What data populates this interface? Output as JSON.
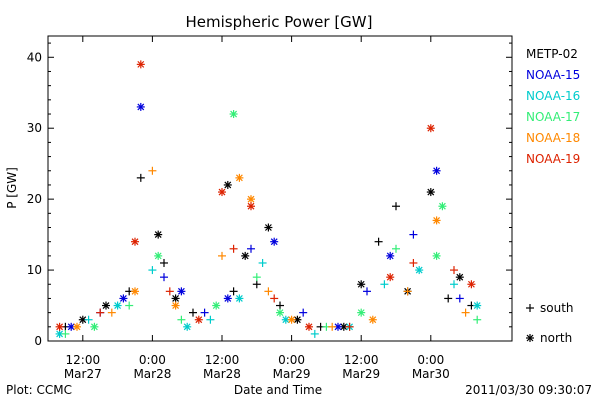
{
  "chart_data": {
    "type": "scatter",
    "title": "Hemispheric Power [GW]",
    "xlabel": "Date and Time",
    "ylabel": "P [GW]",
    "xlim": [
      "2011-03-27T06:00",
      "2011-03-30T14:00"
    ],
    "ylim": [
      0,
      43
    ],
    "yticks": [
      0,
      10,
      20,
      30,
      40
    ],
    "xticks": [
      {
        "t": "2011-03-27T12:00",
        "line1": "12:00",
        "line2": "Mar27"
      },
      {
        "t": "2011-03-28T00:00",
        "line1": "0:00",
        "line2": "Mar28"
      },
      {
        "t": "2011-03-28T12:00",
        "line1": "12:00",
        "line2": "Mar28"
      },
      {
        "t": "2011-03-29T00:00",
        "line1": "0:00",
        "line2": "Mar29"
      },
      {
        "t": "2011-03-29T12:00",
        "line1": "12:00",
        "line2": "Mar29"
      },
      {
        "t": "2011-03-30T00:00",
        "line1": "0:00",
        "line2": "Mar30"
      }
    ],
    "marker_legend": [
      {
        "symbol": "+",
        "label": "south"
      },
      {
        "symbol": "*",
        "label": "north"
      }
    ],
    "series": [
      {
        "name": "METP-02",
        "color": "#000000",
        "points": [
          [
            "2011-03-27T09:00",
            2,
            "+"
          ],
          [
            "2011-03-27T12:00",
            3,
            "*"
          ],
          [
            "2011-03-27T16:00",
            5,
            "*"
          ],
          [
            "2011-03-27T20:00",
            7,
            "+"
          ],
          [
            "2011-03-27T22:00",
            23,
            "+"
          ],
          [
            "2011-03-28T01:00",
            15,
            "*"
          ],
          [
            "2011-03-28T02:00",
            11,
            "+"
          ],
          [
            "2011-03-28T04:00",
            6,
            "*"
          ],
          [
            "2011-03-28T07:00",
            4,
            "+"
          ],
          [
            "2011-03-28T13:00",
            22,
            "*"
          ],
          [
            "2011-03-28T14:00",
            7,
            "+"
          ],
          [
            "2011-03-28T16:00",
            12,
            "*"
          ],
          [
            "2011-03-28T18:00",
            8,
            "+"
          ],
          [
            "2011-03-28T20:00",
            16,
            "*"
          ],
          [
            "2011-03-28T22:00",
            5,
            "+"
          ],
          [
            "2011-03-29T01:00",
            3,
            "*"
          ],
          [
            "2011-03-29T05:00",
            2,
            "+"
          ],
          [
            "2011-03-29T09:00",
            2,
            "*"
          ],
          [
            "2011-03-29T12:00",
            8,
            "*"
          ],
          [
            "2011-03-29T15:00",
            14,
            "+"
          ],
          [
            "2011-03-29T18:00",
            19,
            "+"
          ],
          [
            "2011-03-29T20:00",
            7,
            "*"
          ],
          [
            "2011-03-30T00:00",
            21,
            "*"
          ],
          [
            "2011-03-30T03:00",
            6,
            "+"
          ],
          [
            "2011-03-30T05:00",
            9,
            "*"
          ],
          [
            "2011-03-30T07:00",
            5,
            "+"
          ]
        ]
      },
      {
        "name": "NOAA-15",
        "color": "#0000dd",
        "points": [
          [
            "2011-03-27T10:00",
            2,
            "*"
          ],
          [
            "2011-03-27T15:00",
            4,
            "+"
          ],
          [
            "2011-03-27T19:00",
            6,
            "*"
          ],
          [
            "2011-03-27T22:00",
            33,
            "*"
          ],
          [
            "2011-03-28T02:00",
            9,
            "+"
          ],
          [
            "2011-03-28T05:00",
            7,
            "*"
          ],
          [
            "2011-03-28T09:00",
            4,
            "+"
          ],
          [
            "2011-03-28T13:00",
            6,
            "*"
          ],
          [
            "2011-03-28T17:00",
            13,
            "+"
          ],
          [
            "2011-03-28T21:00",
            14,
            "*"
          ],
          [
            "2011-03-29T02:00",
            4,
            "+"
          ],
          [
            "2011-03-29T08:00",
            2,
            "*"
          ],
          [
            "2011-03-29T13:00",
            7,
            "+"
          ],
          [
            "2011-03-29T17:00",
            12,
            "*"
          ],
          [
            "2011-03-29T21:00",
            15,
            "+"
          ],
          [
            "2011-03-30T01:00",
            24,
            "*"
          ],
          [
            "2011-03-30T05:00",
            6,
            "+"
          ]
        ]
      },
      {
        "name": "NOAA-16",
        "color": "#00cccc",
        "points": [
          [
            "2011-03-27T08:00",
            1,
            "*"
          ],
          [
            "2011-03-27T13:00",
            3,
            "+"
          ],
          [
            "2011-03-27T18:00",
            5,
            "*"
          ],
          [
            "2011-03-28T00:00",
            10,
            "+"
          ],
          [
            "2011-03-28T06:00",
            2,
            "*"
          ],
          [
            "2011-03-28T10:00",
            3,
            "+"
          ],
          [
            "2011-03-28T15:00",
            6,
            "*"
          ],
          [
            "2011-03-28T19:00",
            11,
            "+"
          ],
          [
            "2011-03-28T23:00",
            3,
            "*"
          ],
          [
            "2011-03-29T04:00",
            1,
            "+"
          ],
          [
            "2011-03-29T10:00",
            2,
            "*"
          ],
          [
            "2011-03-29T16:00",
            8,
            "+"
          ],
          [
            "2011-03-29T22:00",
            10,
            "*"
          ],
          [
            "2011-03-30T04:00",
            8,
            "+"
          ],
          [
            "2011-03-30T08:00",
            5,
            "*"
          ]
        ]
      },
      {
        "name": "NOAA-17",
        "color": "#33ee77",
        "points": [
          [
            "2011-03-27T09:00",
            1,
            "+"
          ],
          [
            "2011-03-27T14:00",
            2,
            "*"
          ],
          [
            "2011-03-27T20:00",
            5,
            "+"
          ],
          [
            "2011-03-28T01:00",
            12,
            "*"
          ],
          [
            "2011-03-28T05:00",
            3,
            "+"
          ],
          [
            "2011-03-28T11:00",
            5,
            "*"
          ],
          [
            "2011-03-28T14:00",
            32,
            "*"
          ],
          [
            "2011-03-28T18:00",
            9,
            "+"
          ],
          [
            "2011-03-28T22:00",
            4,
            "*"
          ],
          [
            "2011-03-29T06:00",
            2,
            "+"
          ],
          [
            "2011-03-29T12:00",
            4,
            "*"
          ],
          [
            "2011-03-29T18:00",
            13,
            "+"
          ],
          [
            "2011-03-30T01:00",
            12,
            "*"
          ],
          [
            "2011-03-30T02:00",
            19,
            "*"
          ],
          [
            "2011-03-30T08:00",
            3,
            "+"
          ]
        ]
      },
      {
        "name": "NOAA-18",
        "color": "#ff8800",
        "points": [
          [
            "2011-03-27T11:00",
            2,
            "*"
          ],
          [
            "2011-03-27T17:00",
            4,
            "+"
          ],
          [
            "2011-03-27T21:00",
            7,
            "*"
          ],
          [
            "2011-03-28T00:00",
            24,
            "+"
          ],
          [
            "2011-03-28T04:00",
            5,
            "*"
          ],
          [
            "2011-03-28T12:00",
            12,
            "+"
          ],
          [
            "2011-03-28T15:00",
            23,
            "*"
          ],
          [
            "2011-03-28T17:00",
            20,
            "*"
          ],
          [
            "2011-03-28T20:00",
            7,
            "+"
          ],
          [
            "2011-03-29T00:00",
            3,
            "*"
          ],
          [
            "2011-03-29T07:00",
            2,
            "+"
          ],
          [
            "2011-03-29T14:00",
            3,
            "*"
          ],
          [
            "2011-03-29T20:00",
            7,
            "+"
          ],
          [
            "2011-03-30T01:00",
            17,
            "*"
          ],
          [
            "2011-03-30T06:00",
            4,
            "+"
          ]
        ]
      },
      {
        "name": "NOAA-19",
        "color": "#dd2200",
        "points": [
          [
            "2011-03-27T08:00",
            2,
            "*"
          ],
          [
            "2011-03-27T15:00",
            4,
            "+"
          ],
          [
            "2011-03-27T21:00",
            14,
            "*"
          ],
          [
            "2011-03-27T22:00",
            39,
            "*"
          ],
          [
            "2011-03-28T03:00",
            7,
            "+"
          ],
          [
            "2011-03-28T08:00",
            3,
            "*"
          ],
          [
            "2011-03-28T12:00",
            21,
            "*"
          ],
          [
            "2011-03-28T14:00",
            13,
            "+"
          ],
          [
            "2011-03-28T17:00",
            19,
            "*"
          ],
          [
            "2011-03-28T21:00",
            6,
            "+"
          ],
          [
            "2011-03-29T03:00",
            2,
            "*"
          ],
          [
            "2011-03-29T10:00",
            2,
            "+"
          ],
          [
            "2011-03-29T17:00",
            9,
            "*"
          ],
          [
            "2011-03-29T21:00",
            11,
            "+"
          ],
          [
            "2011-03-30T00:00",
            30,
            "*"
          ],
          [
            "2011-03-30T04:00",
            10,
            "+"
          ],
          [
            "2011-03-30T07:00",
            8,
            "*"
          ]
        ]
      }
    ]
  },
  "footer": {
    "plot_label": "Plot: CCMC",
    "timestamp": "2011/03/30 09:30:07"
  }
}
